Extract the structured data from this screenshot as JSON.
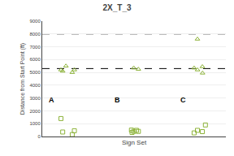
{
  "chart_data": {
    "type": "strip",
    "title": "2X_T_3",
    "xlabel": "Sign Set",
    "ylabel": "Distance from Start Point (ft)",
    "categories": [
      "A",
      "B",
      "C"
    ],
    "series": [
      {
        "marker": "square",
        "color": "#8db33a",
        "values": [
          [
            450,
            150,
            350,
            1400
          ],
          [
            500,
            480,
            400,
            320,
            400
          ],
          [
            480,
            380,
            280,
            900
          ]
        ]
      },
      {
        "marker": "triangle",
        "color": "#8db33a",
        "values": [
          [
            5500,
            5100,
            5000,
            5200,
            5200
          ],
          [
            5250,
            5350
          ],
          [
            7600,
            4950,
            5200,
            5350,
            5450
          ]
        ]
      }
    ],
    "hlines": [
      {
        "y": 8000,
        "line_style": "dashed"
      },
      {
        "y": 5300,
        "line_style": "dashed"
      }
    ],
    "ylim": [
      0,
      9000
    ],
    "yticks": [
      0,
      1000,
      2000,
      3000,
      4000,
      5000,
      6000,
      7000,
      8000,
      9000
    ],
    "grid": true,
    "tick_labels": "y"
  }
}
